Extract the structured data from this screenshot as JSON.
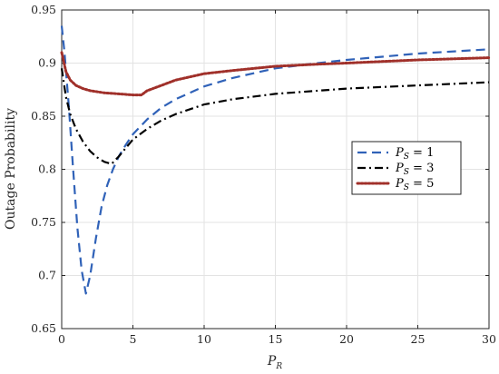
{
  "chart_data": {
    "type": "line",
    "title": "",
    "xlabel_main": "P",
    "xlabel_sub": "R",
    "ylabel": "Outage Probability",
    "xlim": [
      0,
      30
    ],
    "ylim": [
      0.65,
      0.95
    ],
    "xticks": [
      0,
      5,
      10,
      15,
      20,
      25,
      30
    ],
    "yticks": [
      0.65,
      0.7,
      0.75,
      0.8,
      0.85,
      0.9,
      0.95
    ],
    "xtick_labels": [
      "0",
      "5",
      "10",
      "15",
      "20",
      "25",
      "30"
    ],
    "ytick_labels": [
      "0.65",
      "0.7",
      "0.75",
      "0.8",
      "0.85",
      "0.9",
      "0.95"
    ],
    "grid": true,
    "legend_position": "middle-right",
    "series": [
      {
        "name": "P_S = 1",
        "label_main": "P",
        "label_sub": "S",
        "label_rest": " = 1",
        "color": "#3062b8",
        "style": "dashed",
        "x": [
          0.0,
          0.2,
          0.5,
          0.8,
          1.1,
          1.4,
          1.7,
          2.0,
          2.4,
          2.8,
          3.2,
          3.6,
          4.0,
          4.5,
          5.0,
          6.0,
          7.0,
          8.0,
          10.0,
          12.0,
          15.0,
          18.0,
          20.0,
          25.0,
          30.0
        ],
        "y": [
          0.935,
          0.91,
          0.86,
          0.8,
          0.745,
          0.705,
          0.683,
          0.7,
          0.735,
          0.765,
          0.785,
          0.8,
          0.812,
          0.823,
          0.833,
          0.847,
          0.858,
          0.866,
          0.878,
          0.886,
          0.895,
          0.9,
          0.903,
          0.909,
          0.913
        ]
      },
      {
        "name": "P_S = 3",
        "label_main": "P",
        "label_sub": "S",
        "label_rest": " = 3",
        "color": "#000000",
        "style": "dashdot",
        "x": [
          0.0,
          0.3,
          0.6,
          1.0,
          1.5,
          2.0,
          2.5,
          3.0,
          3.5,
          4.0,
          4.5,
          5.0,
          6.0,
          7.0,
          8.0,
          10.0,
          12.0,
          15.0,
          18.0,
          20.0,
          25.0,
          30.0
        ],
        "y": [
          0.895,
          0.868,
          0.852,
          0.838,
          0.826,
          0.817,
          0.811,
          0.807,
          0.805,
          0.812,
          0.82,
          0.828,
          0.838,
          0.846,
          0.852,
          0.861,
          0.866,
          0.871,
          0.874,
          0.876,
          0.879,
          0.882
        ]
      },
      {
        "name": "P_S = 5",
        "label_main": "P",
        "label_sub": "S",
        "label_rest": " = 5",
        "color": "#a0302a",
        "style": "dotted",
        "x": [
          0.0,
          0.3,
          0.6,
          1.0,
          1.5,
          2.0,
          3.0,
          4.0,
          5.0,
          5.6,
          6.0,
          7.0,
          8.0,
          9.0,
          10.0,
          12.0,
          15.0,
          18.0,
          20.0,
          25.0,
          30.0
        ],
        "y": [
          0.91,
          0.892,
          0.884,
          0.879,
          0.876,
          0.874,
          0.872,
          0.871,
          0.87,
          0.87,
          0.874,
          0.879,
          0.884,
          0.887,
          0.89,
          0.893,
          0.897,
          0.899,
          0.9,
          0.903,
          0.905
        ]
      }
    ]
  }
}
